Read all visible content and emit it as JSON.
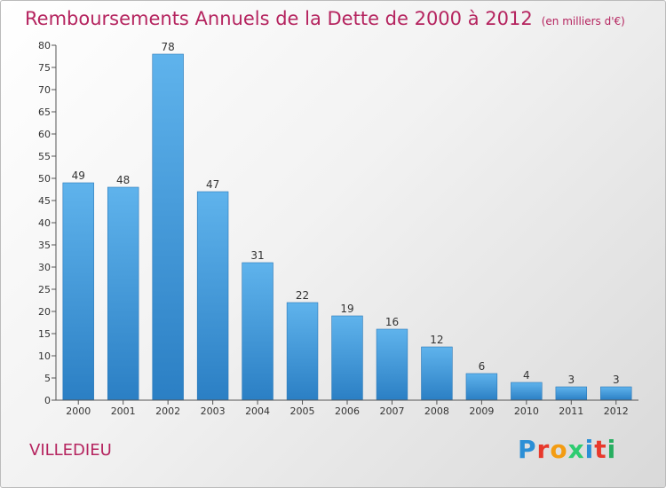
{
  "title": "Remboursements Annuels de la Dette de 2000 à 2012",
  "subtitle": "(en milliers d'€)",
  "commune": "VILLEDIEU",
  "logo": {
    "letters": [
      "P",
      "r",
      "o",
      "x",
      "i",
      "t",
      "i"
    ],
    "colors": [
      "#2b8fd6",
      "#e8392c",
      "#f39c12",
      "#2ecc71",
      "#2b8fd6",
      "#e8392c",
      "#27ae60"
    ]
  },
  "chart_data": {
    "type": "bar",
    "categories": [
      "2000",
      "2001",
      "2002",
      "2003",
      "2004",
      "2005",
      "2006",
      "2007",
      "2008",
      "2009",
      "2010",
      "2011",
      "2012"
    ],
    "values": [
      49,
      48,
      78,
      47,
      31,
      22,
      19,
      16,
      12,
      6,
      4,
      3,
      3
    ],
    "ylim": [
      0,
      80
    ],
    "yticks": [
      0,
      5,
      10,
      15,
      20,
      25,
      30,
      35,
      40,
      45,
      50,
      55,
      60,
      65,
      70,
      75,
      80
    ],
    "grid": false,
    "colors": {
      "bar_light": "#5fb3ec",
      "bar_dark": "#2b7fc4"
    }
  }
}
